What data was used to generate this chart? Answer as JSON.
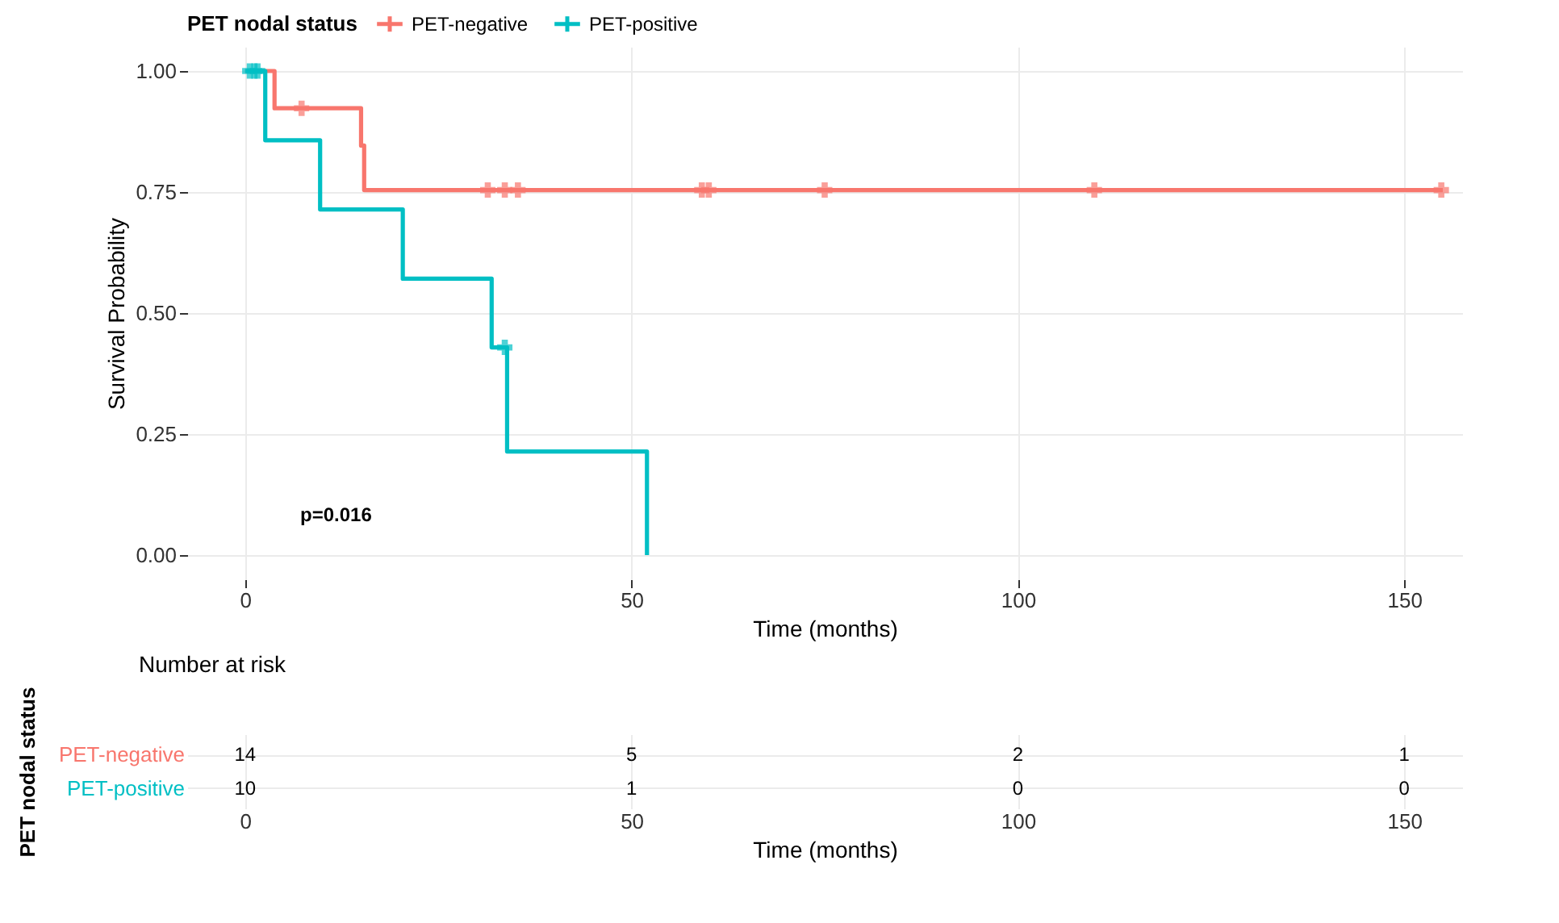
{
  "chart_data": [
    {
      "type": "step",
      "xlabel": "Time (months)",
      "ylabel": "Survival Probability",
      "legend_title": "PET nodal status",
      "legend": "top",
      "xlim": [
        -7.5,
        157.5
      ],
      "xticks": [
        0,
        50,
        100,
        150
      ],
      "ylim": [
        -0.05,
        1.05
      ],
      "yticks": [
        {
          "value": 0,
          "label": "0.00"
        },
        {
          "value": 0.25,
          "label": "0.25"
        },
        {
          "value": 0.5,
          "label": "0.50"
        },
        {
          "value": 0.75,
          "label": "0.75"
        },
        {
          "value": 1,
          "label": "1.00"
        }
      ],
      "grid": true,
      "series": [
        {
          "name": "PET-negative",
          "color": "#f8766d",
          "x": [
            0,
            3.8,
            15,
            15.4,
            155
          ],
          "values": [
            1,
            0.923,
            0.846,
            0.754,
            0.754
          ]
        },
        {
          "name": "PET-positive",
          "color": "#00bfc4",
          "x": [
            0,
            2.6,
            9.7,
            20.4,
            31.9,
            33.9,
            52
          ],
          "values": [
            1,
            0.857,
            0.714,
            0.571,
            0.429,
            0.214,
            0
          ]
        },
        {
          "type": "scatter",
          "marker": "cross",
          "color": "#f8766d",
          "x": [
            7.3,
            31.4,
            33.6,
            35.3,
            59.1,
            60,
            75,
            109.9,
            154.8
          ],
          "values": [
            0.923,
            0.754,
            0.754,
            0.754,
            0.754,
            0.754,
            0.754,
            0.754,
            0.754
          ]
        },
        {
          "type": "scatter",
          "marker": "cross",
          "color": "#00bfc4",
          "x": [
            0.6,
            1.2,
            1.6,
            33.6
          ],
          "values": [
            1,
            1,
            1,
            0.429
          ]
        }
      ],
      "annotations": [
        "p=0.016"
      ]
    },
    {
      "type": "heatmap",
      "title": "Number at risk",
      "xlabel": "Time (months)",
      "ylabel": "PET nodal status",
      "x": [
        0,
        50,
        100,
        150
      ],
      "xlim": [
        -7.5,
        157.5
      ],
      "xticks": [
        0,
        50,
        100,
        150
      ],
      "grid": true,
      "y_categories": [
        "PET-negative",
        "PET-positive"
      ],
      "cells": [
        [
          14,
          5,
          2,
          1
        ],
        [
          10,
          1,
          0,
          0
        ]
      ],
      "data_labels": true
    }
  ]
}
